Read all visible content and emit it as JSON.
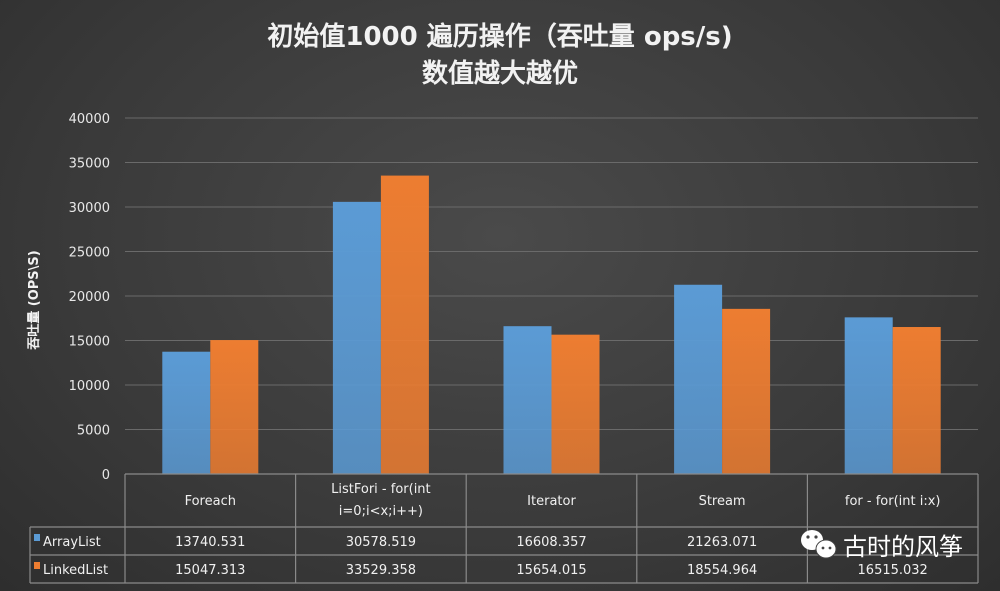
{
  "chart_data": {
    "type": "bar",
    "title": "初始值1000 遍历操作（吞吐量 ops/s)",
    "subtitle": "数值越大越优",
    "ylabel": "吞吐量 (OPS\\S)",
    "xlabel": "",
    "ylim": [
      0,
      40000
    ],
    "yticks": [
      0,
      5000,
      10000,
      15000,
      20000,
      25000,
      30000,
      35000,
      40000
    ],
    "grid": true,
    "legend": "data-table",
    "categories": [
      "Foreach",
      "ListFori - for(int i=0;i<x;i++)",
      "Iterator",
      "Stream",
      "for - for(int i:x)"
    ],
    "category_lines": [
      [
        "Foreach"
      ],
      [
        "ListFori - for(int",
        "i=0;i<x;i++)"
      ],
      [
        "Iterator"
      ],
      [
        "Stream"
      ],
      [
        "for - for(int i:x)"
      ]
    ],
    "series": [
      {
        "name": "ArrayList",
        "color": "#5b9bd5",
        "values": [
          13740.531,
          30578.519,
          16608.357,
          21263.071,
          17600
        ]
      },
      {
        "name": "LinkedList",
        "color": "#ed7d31",
        "values": [
          15047.313,
          33529.358,
          15654.015,
          18554.964,
          16515.032
        ]
      }
    ],
    "table_values": [
      [
        "13740.531",
        "30578.519",
        "16608.357",
        "21263.071",
        ""
      ],
      [
        "15047.313",
        "33529.358",
        "15654.015",
        "18554.964",
        "16515.032"
      ]
    ]
  },
  "watermark": {
    "text": "古时的风筝",
    "icon": "wechat-icon"
  }
}
